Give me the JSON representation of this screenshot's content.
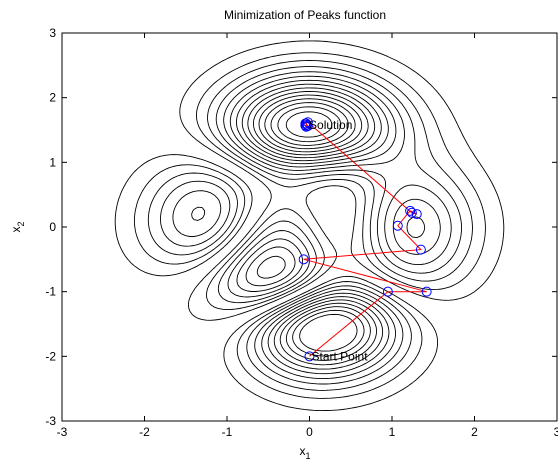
{
  "chart_data": {
    "type": "line",
    "title": "Minimization of Peaks function",
    "xlabel": {
      "base": "x",
      "sub": "1"
    },
    "ylabel": {
      "base": "x",
      "sub": "2"
    },
    "xlim": [
      -3,
      3
    ],
    "ylim": [
      -3,
      3
    ],
    "xticks": [
      "-3",
      "-2",
      "-1",
      "0",
      "1",
      "2",
      "3"
    ],
    "yticks": [
      "-3",
      "-2",
      "-1",
      "0",
      "1",
      "2",
      "3"
    ],
    "grid": false,
    "legend": "none",
    "contour": {
      "function": "peaks",
      "levels": [
        -5.5,
        -5,
        -4.5,
        -4,
        -3.5,
        -3,
        -2.5,
        -2,
        -1.5,
        -1,
        -0.5,
        0.5,
        1,
        1.5,
        2,
        2.5,
        3,
        3.5,
        4,
        4.5,
        5,
        5.5,
        6,
        6.5,
        7,
        7.5
      ],
      "color": "#000000",
      "line_style": "dashed"
    },
    "series": [
      {
        "marker": "circle",
        "color": "#ff0000",
        "marker_color": "#0000ff",
        "x": [
          0,
          0.95,
          1.42,
          -0.07,
          1.35,
          1.07,
          1.22,
          1.3,
          1.24,
          -0.02,
          -0.05,
          -0.03,
          -0.04,
          -0.05,
          -0.02,
          -0.04
        ],
        "y": [
          -2,
          -1,
          -1,
          -0.5,
          -0.35,
          0.02,
          0.25,
          0.2,
          0.22,
          1.62,
          1.6,
          1.58,
          1.55,
          1.57,
          1.56,
          1.6
        ]
      }
    ],
    "annotations": [
      {
        "text": "Start Point",
        "x": 0,
        "y": -2
      },
      {
        "text": "Solution",
        "x": -0.03,
        "y": 1.58
      }
    ]
  }
}
